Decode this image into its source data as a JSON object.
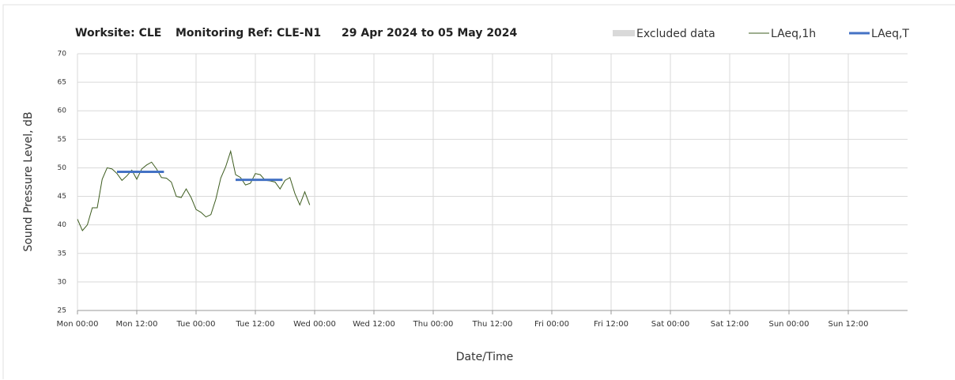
{
  "chart_data": {
    "type": "line",
    "title": [
      "Worksite: CLE",
      "Monitoring Ref: CLE-N1",
      "29 Apr 2024 to 05 May 2024"
    ],
    "xlabel": "Date/Time",
    "ylabel": "Sound Pressure Level, dB",
    "xlim": [
      0,
      168
    ],
    "xticks": [
      {
        "value": 0,
        "label": "Mon 00:00"
      },
      {
        "value": 12,
        "label": "Mon 12:00"
      },
      {
        "value": 24,
        "label": "Tue 00:00"
      },
      {
        "value": 36,
        "label": "Tue 12:00"
      },
      {
        "value": 48,
        "label": "Wed 00:00"
      },
      {
        "value": 60,
        "label": "Wed 12:00"
      },
      {
        "value": 72,
        "label": "Thu 00:00"
      },
      {
        "value": 84,
        "label": "Thu 12:00"
      },
      {
        "value": 96,
        "label": "Fri 00:00"
      },
      {
        "value": 108,
        "label": "Fri 12:00"
      },
      {
        "value": 120,
        "label": "Sat 00:00"
      },
      {
        "value": 132,
        "label": "Sat 12:00"
      },
      {
        "value": 144,
        "label": "Sun 00:00"
      },
      {
        "value": 156,
        "label": "Sun 12:00"
      }
    ],
    "ylim": [
      25,
      70
    ],
    "yticks": [
      25,
      30,
      35,
      40,
      45,
      50,
      55,
      60,
      65,
      70
    ],
    "grid": true,
    "legend": "top-right",
    "series": [
      {
        "name": "Excluded data",
        "color": "#d9d9d9",
        "style": "area",
        "x": [],
        "values": []
      },
      {
        "name": "LAeq,1h",
        "color": "#3d5c1f",
        "style": "thin",
        "x": [
          0,
          1,
          2,
          3,
          4,
          5,
          6,
          7,
          8,
          9,
          10,
          11,
          12,
          13,
          14,
          15,
          16,
          17,
          18,
          19,
          20,
          21,
          22,
          23,
          24,
          25,
          26,
          27,
          28,
          29,
          30,
          31,
          32,
          33,
          34,
          35,
          36,
          37,
          38,
          39,
          40,
          41,
          42,
          43,
          44,
          45,
          46,
          47
        ],
        "values": [
          41,
          39,
          40,
          43,
          43,
          48,
          50,
          49.8,
          49,
          47.8,
          48.6,
          49.6,
          48,
          49.8,
          50.5,
          51,
          49.8,
          48.3,
          48.2,
          47.5,
          45,
          44.8,
          46.3,
          44.8,
          42.7,
          42.2,
          41.4,
          41.8,
          44.5,
          48.2,
          50.2,
          52.9,
          48.8,
          48.3,
          47,
          47.3,
          49,
          48.8,
          47.8,
          47.7,
          47.5,
          46.3,
          47.8,
          48.3,
          45.5,
          43.5,
          45.8,
          43.5
        ]
      },
      {
        "name": "LAeq,T",
        "color": "#4472c4",
        "style": "thick",
        "x": [
          8,
          17.5,
          24,
          32,
          41.5
        ],
        "values": [
          49.3,
          49.3,
          null,
          47.9,
          47.9
        ]
      }
    ]
  }
}
